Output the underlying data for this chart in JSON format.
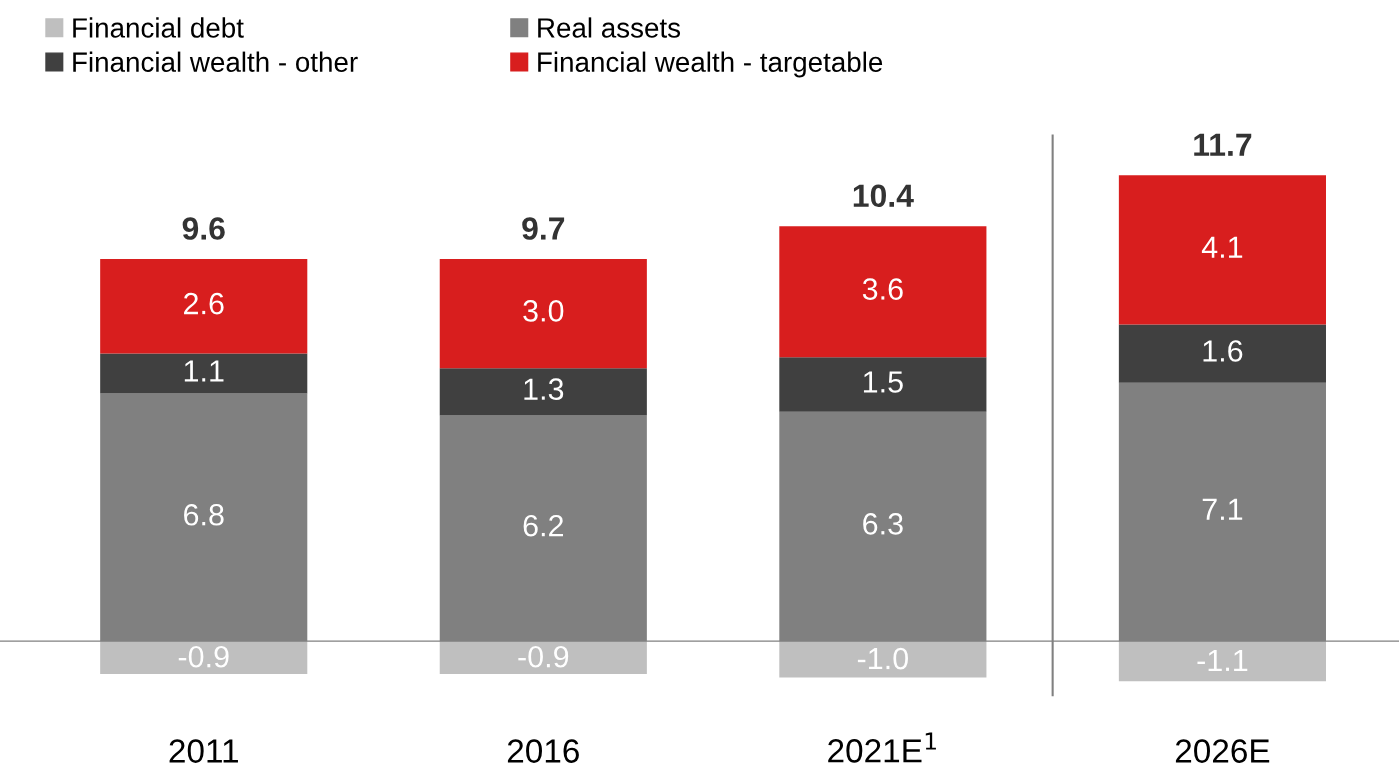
{
  "chart_data": {
    "type": "bar",
    "stacked": true,
    "categories": [
      "2011",
      "2016",
      "2021E$^{1}$",
      "2026E"
    ],
    "series": [
      {
        "name": "Financial debt",
        "color": "#bfbfbf",
        "values": [
          -0.9,
          -0.9,
          -1.0,
          -1.1
        ],
        "value_labels": [
          "-0.9",
          "-0.9",
          "-1.0",
          "-1.1"
        ]
      },
      {
        "name": "Real assets",
        "color": "#808080",
        "values": [
          6.8,
          6.2,
          6.3,
          7.1
        ],
        "value_labels": [
          "6.8",
          "6.2",
          "6.3",
          "7.1"
        ]
      },
      {
        "name": "Financial wealth - other",
        "color": "#404040",
        "values": [
          1.1,
          1.3,
          1.5,
          1.6
        ],
        "value_labels": [
          "1.1",
          "1.3",
          "1.5",
          "1.6"
        ]
      },
      {
        "name": "Financial wealth - targetable",
        "color": "#d81e1e",
        "values": [
          2.6,
          3.0,
          3.6,
          4.1
        ],
        "value_labels": [
          "2.6",
          "3.0",
          "3.6",
          "4.1"
        ]
      }
    ],
    "totals": [
      "9.6",
      "9.7",
      "10.4",
      "11.7"
    ],
    "legend": "top left",
    "grid": false
  }
}
